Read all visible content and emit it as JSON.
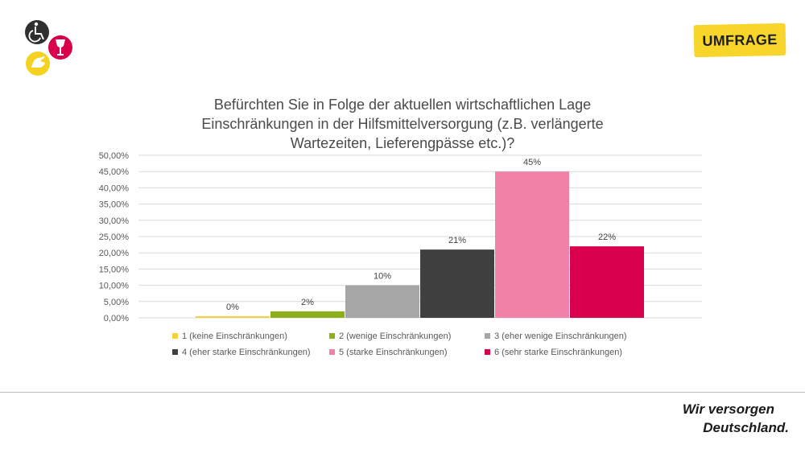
{
  "badge": {
    "label": "UMFRAGE"
  },
  "footer": {
    "line1": "Wir versorgen",
    "line2": "Deutschland."
  },
  "logo": {
    "icons": [
      "wheelchair-icon",
      "wine-glass-icon",
      "hand-icon"
    ],
    "colors": [
      "#2f2f2f",
      "#d9004c",
      "#f5d220"
    ]
  },
  "chart_data": {
    "type": "bar",
    "title": "Befürchten Sie in Folge der aktuellen wirtschaftlichen Lage Einschränkungen in der Hilfsmittelversorgung (z.B. verlängerte Wartezeiten, Lieferengpässe etc.)?",
    "title_lines": [
      "Befürchten Sie in Folge der aktuellen wirtschaftlichen Lage",
      "Einschränkungen in der Hilfsmittelversorgung (z.B. verlängerte",
      "Wartezeiten, Lieferengpässe etc.)?"
    ],
    "categories": [
      "1 (keine Einschränkungen)",
      "2 (wenige Einschränkungen)",
      "3 (eher wenige Einschränkungen)",
      "4 (eher starke Einschränkungen)",
      "5 (starke Einschränkungen)",
      "6 (sehr starke Einschränkungen)"
    ],
    "values": [
      0.5,
      2,
      10,
      21,
      45,
      22
    ],
    "data_labels": [
      "0%",
      "2%",
      "10%",
      "21%",
      "45%",
      "22%"
    ],
    "colors": [
      "#f5d13d",
      "#8db01a",
      "#a6a6a6",
      "#404040",
      "#ef82a6",
      "#d9004c"
    ],
    "ylim": [
      0,
      50
    ],
    "yticks": [
      "0,00%",
      "5,00%",
      "10,00%",
      "15,00%",
      "20,00%",
      "25,00%",
      "30,00%",
      "35,00%",
      "40,00%",
      "45,00%",
      "50,00%"
    ],
    "grid": true,
    "legend_position": "bottom"
  }
}
